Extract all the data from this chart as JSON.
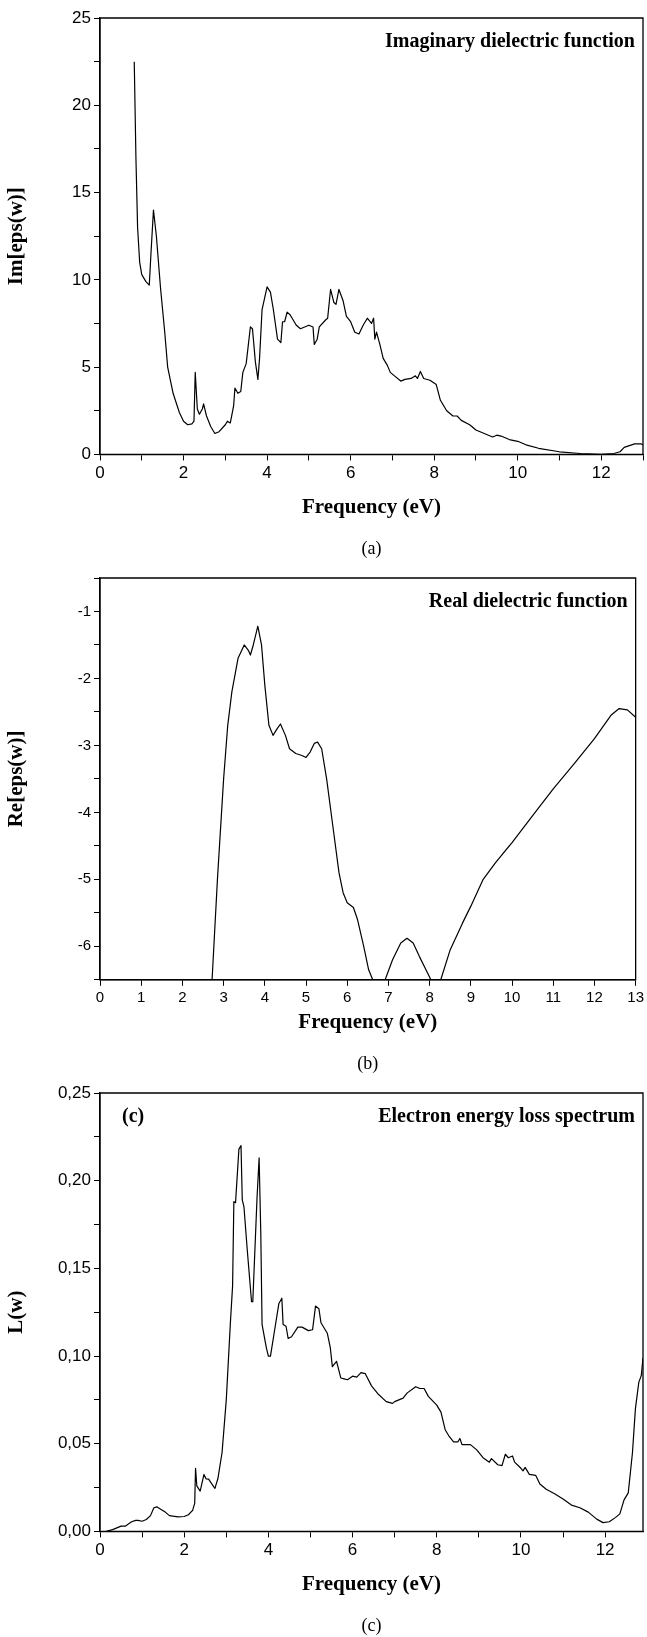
{
  "chart_data": [
    {
      "type": "line",
      "title": "Imaginary dielectric function",
      "xlabel": "Frequency (eV)",
      "ylabel": "Im[eps(w)]",
      "annotations": [
        "(a)"
      ],
      "xlim": [
        0,
        13
      ],
      "xticks": [
        0,
        {
          "value": 1,
          "label": null
        },
        2,
        {
          "value": 3,
          "label": null
        },
        4,
        {
          "value": 5,
          "label": null
        },
        6,
        {
          "value": 7,
          "label": null
        },
        8,
        {
          "value": 9,
          "label": null
        },
        10,
        {
          "value": 11,
          "label": null
        },
        12,
        {
          "value": 13,
          "label": null
        }
      ],
      "ylim": [
        0,
        25
      ],
      "yticks": [
        0,
        {
          "value": 2.5,
          "label": null
        },
        5,
        {
          "value": 7.5,
          "label": null
        },
        10,
        {
          "value": 12.5,
          "label": null
        },
        15,
        {
          "value": 17.5,
          "label": null
        },
        20,
        {
          "value": 22.5,
          "label": null
        },
        25
      ],
      "grid": false,
      "legend": false,
      "series": [
        {
          "color": "#000000",
          "x": [
            0.82,
            0.86,
            0.9,
            0.95,
            1.0,
            1.1,
            1.18,
            1.22,
            1.28,
            1.35,
            1.45,
            1.55,
            1.62,
            1.75,
            1.9,
            2.0,
            2.1,
            2.2,
            2.25,
            2.28,
            2.33,
            2.38,
            2.45,
            2.48,
            2.55,
            2.65,
            2.75,
            2.85,
            3.0,
            3.05,
            3.12,
            3.2,
            3.23,
            3.3,
            3.37,
            3.42,
            3.5,
            3.6,
            3.65,
            3.72,
            3.78,
            3.82,
            3.88,
            4.0,
            4.08,
            4.15,
            4.25,
            4.33,
            4.37,
            4.42,
            4.48,
            4.55,
            4.7,
            4.8,
            4.9,
            5.0,
            5.1,
            5.13,
            5.2,
            5.25,
            5.4,
            5.45,
            5.52,
            5.6,
            5.65,
            5.72,
            5.82,
            5.9,
            6.0,
            6.1,
            6.2,
            6.3,
            6.4,
            6.5,
            6.55,
            6.58,
            6.62,
            6.7,
            6.78,
            6.88,
            6.95,
            7.05,
            7.2,
            7.3,
            7.45,
            7.55,
            7.6,
            7.67,
            7.75,
            7.9,
            8.05,
            8.15,
            8.3,
            8.45,
            8.55,
            8.65,
            8.85,
            9.0,
            9.2,
            9.4,
            9.5,
            9.6,
            9.8,
            10.0,
            10.2,
            10.5,
            11.0,
            11.5,
            12.0,
            12.3,
            12.45,
            12.55,
            12.8,
            12.95,
            13
          ],
          "values": [
            22.5,
            17,
            13,
            11,
            10.3,
            9.9,
            9.7,
            11.5,
            14.0,
            12.5,
            9.5,
            7,
            5,
            3.5,
            2.4,
            1.9,
            1.7,
            1.75,
            1.9,
            4.7,
            2.6,
            2.3,
            2.6,
            2.9,
            2.2,
            1.6,
            1.2,
            1.3,
            1.7,
            1.9,
            1.8,
            2.8,
            3.8,
            3.5,
            3.6,
            4.7,
            5.2,
            7.3,
            7.2,
            5.3,
            4.3,
            5.5,
            8.3,
            9.6,
            9.3,
            8.3,
            6.6,
            6.4,
            7.6,
            7.6,
            8.15,
            8.0,
            7.4,
            7.2,
            7.3,
            7.4,
            7.3,
            6.3,
            6.6,
            7.3,
            7.7,
            7.8,
            9.45,
            8.7,
            8.6,
            9.45,
            8.8,
            7.9,
            7.6,
            7.0,
            6.9,
            7.4,
            7.8,
            7.5,
            7.8,
            6.6,
            7.0,
            6.3,
            5.5,
            5.1,
            4.7,
            4.5,
            4.2,
            4.3,
            4.35,
            4.5,
            4.35,
            4.75,
            4.35,
            4.25,
            4.0,
            3.1,
            2.5,
            2.2,
            2.2,
            1.95,
            1.7,
            1.4,
            1.2,
            1.0,
            1.1,
            1.05,
            0.85,
            0.75,
            0.55,
            0.35,
            0.15,
            0.05,
            0.0,
            0.05,
            0.15,
            0.4,
            0.6,
            0.6,
            0.55
          ]
        }
      ]
    },
    {
      "type": "line",
      "title": "Real dielectric function",
      "xlabel": "Frequency (eV)",
      "ylabel": "Re[eps(w)]",
      "annotations": [
        "(b)"
      ],
      "xlim": [
        0,
        13
      ],
      "xticks": [
        0,
        1,
        2,
        3,
        4,
        5,
        6,
        7,
        8,
        9,
        10,
        11,
        12,
        13
      ],
      "ylim": [
        -6.5,
        -0.5
      ],
      "yticks": [
        {
          "value": -6.5,
          "label": null
        },
        -6,
        {
          "value": -5.5,
          "label": null
        },
        -5,
        {
          "value": -4.5,
          "label": null
        },
        -4,
        {
          "value": -3.5,
          "label": null
        },
        -3,
        {
          "value": -2.5,
          "label": null
        },
        -2,
        {
          "value": -1.5,
          "label": null
        },
        -1,
        {
          "value": -0.5,
          "label": null
        }
      ],
      "grid": false,
      "legend": false,
      "series": [
        {
          "color": "#000000",
          "x": [
            2.72,
            2.85,
            3.0,
            3.1,
            3.2,
            3.35,
            3.5,
            3.6,
            3.65,
            3.72,
            3.83,
            3.92,
            4.0,
            4.1,
            4.2,
            4.3,
            4.38,
            4.5,
            4.6,
            4.75,
            4.9,
            5.0,
            5.1,
            5.2,
            5.28,
            5.38,
            5.5,
            5.65,
            5.8,
            5.9,
            6.0,
            6.15,
            6.25,
            6.4,
            6.52,
            6.62,
            6.78,
            6.92,
            7.1,
            7.3,
            7.45,
            7.6,
            7.75,
            7.95,
            8.03,
            8.15,
            8.27,
            8.5,
            8.8,
            9.0,
            9.3,
            9.6,
            10.0,
            10.5,
            11.0,
            11.5,
            12.0,
            12.4,
            12.6,
            12.8,
            13.0
          ],
          "values": [
            -6.5,
            -5.0,
            -3.5,
            -2.7,
            -2.2,
            -1.7,
            -1.5,
            -1.58,
            -1.65,
            -1.5,
            -1.22,
            -1.5,
            -2.1,
            -2.7,
            -2.85,
            -2.75,
            -2.68,
            -2.85,
            -3.05,
            -3.12,
            -3.15,
            -3.18,
            -3.1,
            -2.97,
            -2.95,
            -3.05,
            -3.5,
            -4.2,
            -4.9,
            -5.2,
            -5.35,
            -5.42,
            -5.6,
            -6.0,
            -6.35,
            -6.5,
            null,
            -6.5,
            -6.2,
            -5.95,
            -5.88,
            -5.95,
            -6.15,
            -6.4,
            -6.5,
            null,
            -6.5,
            -6.05,
            -5.65,
            -5.4,
            -5.0,
            -4.75,
            -4.45,
            -4.05,
            -3.65,
            -3.28,
            -2.9,
            -2.55,
            -2.45,
            -2.47,
            -2.58
          ]
        }
      ]
    },
    {
      "type": "line",
      "title": "Electron energy loss spectrum",
      "xlabel": "Frequency (eV)",
      "ylabel": "L(w)",
      "annotations": [
        "(c)",
        "(c)"
      ],
      "xlim": [
        0,
        12.9
      ],
      "xticks": [
        0,
        {
          "value": 1,
          "label": null
        },
        2,
        {
          "value": 3,
          "label": null
        },
        4,
        {
          "value": 5,
          "label": null
        },
        6,
        {
          "value": 7,
          "label": null
        },
        8,
        {
          "value": 9,
          "label": null
        },
        10,
        {
          "value": 11,
          "label": null
        },
        12
      ],
      "ylim": [
        0,
        0.25
      ],
      "yticks": [
        {
          "value": 0,
          "label": "0,00"
        },
        {
          "value": 0.025,
          "label": null
        },
        {
          "value": 0.05,
          "label": "0,05"
        },
        {
          "value": 0.075,
          "label": null
        },
        {
          "value": 0.1,
          "label": "0,10"
        },
        {
          "value": 0.125,
          "label": null
        },
        {
          "value": 0.15,
          "label": "0,15"
        },
        {
          "value": 0.175,
          "label": null
        },
        {
          "value": 0.2,
          "label": "0,20"
        },
        {
          "value": 0.225,
          "label": null
        },
        {
          "value": 0.25,
          "label": "0,25"
        }
      ],
      "grid": false,
      "legend": false,
      "series": [
        {
          "color": "#000000",
          "x": [
            0.15,
            0.3,
            0.5,
            0.6,
            0.75,
            0.85,
            0.9,
            1.0,
            1.1,
            1.2,
            1.28,
            1.35,
            1.45,
            1.55,
            1.65,
            1.85,
            2.0,
            2.1,
            2.2,
            2.25,
            2.27,
            2.3,
            2.38,
            2.47,
            2.52,
            2.58,
            2.7,
            2.73,
            2.8,
            2.9,
            3.0,
            3.1,
            3.15,
            3.18,
            3.22,
            3.3,
            3.35,
            3.38,
            3.42,
            3.5,
            3.6,
            3.63,
            3.73,
            3.78,
            3.82,
            3.85,
            3.95,
            4.0,
            4.05,
            4.15,
            4.25,
            4.32,
            4.35,
            4.42,
            4.47,
            4.55,
            4.7,
            4.8,
            4.95,
            5.05,
            5.12,
            5.2,
            5.25,
            5.4,
            5.47,
            5.52,
            5.62,
            5.72,
            5.8,
            5.88,
            6.0,
            6.1,
            6.2,
            6.3,
            6.45,
            6.6,
            6.8,
            6.95,
            7.0,
            7.2,
            7.3,
            7.5,
            7.6,
            7.7,
            7.8,
            8.0,
            8.1,
            8.2,
            8.3,
            8.4,
            8.5,
            8.55,
            8.6,
            8.8,
            8.95,
            9.1,
            9.25,
            9.3,
            9.45,
            9.55,
            9.63,
            9.7,
            9.8,
            9.85,
            10.0,
            10.05,
            10.1,
            10.2,
            10.35,
            10.45,
            10.6,
            10.8,
            11.0,
            11.2,
            11.4,
            11.6,
            11.8,
            11.95,
            12.1,
            12.25,
            12.35,
            12.45,
            12.55,
            12.65,
            12.72,
            12.8,
            12.86,
            12.9
          ],
          "values": [
            0.0,
            0.001,
            0.003,
            0.003,
            0.0055,
            0.0063,
            0.0063,
            0.0058,
            0.0068,
            0.009,
            0.0135,
            0.014,
            0.0125,
            0.011,
            0.009,
            0.0083,
            0.0085,
            0.0095,
            0.012,
            0.016,
            0.036,
            0.026,
            0.023,
            0.0325,
            0.03,
            0.0298,
            0.0255,
            0.0245,
            0.03,
            0.045,
            0.075,
            0.12,
            0.14,
            0.188,
            0.1875,
            0.218,
            0.22,
            0.189,
            0.185,
            0.16,
            0.131,
            0.131,
            0.19,
            0.213,
            0.17,
            0.118,
            0.105,
            0.1,
            0.1,
            0.115,
            0.13,
            0.133,
            0.118,
            0.117,
            0.11,
            0.111,
            0.1165,
            0.1165,
            0.1145,
            0.115,
            0.1285,
            0.127,
            0.119,
            0.113,
            0.105,
            0.094,
            0.097,
            0.0875,
            0.087,
            0.0865,
            0.0885,
            0.088,
            0.0905,
            0.09,
            0.083,
            0.0785,
            0.074,
            0.073,
            0.074,
            0.076,
            0.079,
            0.0825,
            0.0815,
            0.0815,
            0.077,
            0.072,
            0.068,
            0.058,
            0.054,
            0.051,
            0.051,
            0.053,
            0.0495,
            0.0495,
            0.0465,
            0.042,
            0.0395,
            0.0415,
            0.038,
            0.0375,
            0.044,
            0.042,
            0.043,
            0.0395,
            0.036,
            0.0345,
            0.0365,
            0.0325,
            0.032,
            0.027,
            0.024,
            0.0215,
            0.0185,
            0.015,
            0.0135,
            0.011,
            0.007,
            0.005,
            0.0055,
            0.008,
            0.01,
            0.018,
            0.022,
            0.045,
            0.07,
            0.085,
            0.089,
            0.099
          ]
        }
      ]
    }
  ]
}
